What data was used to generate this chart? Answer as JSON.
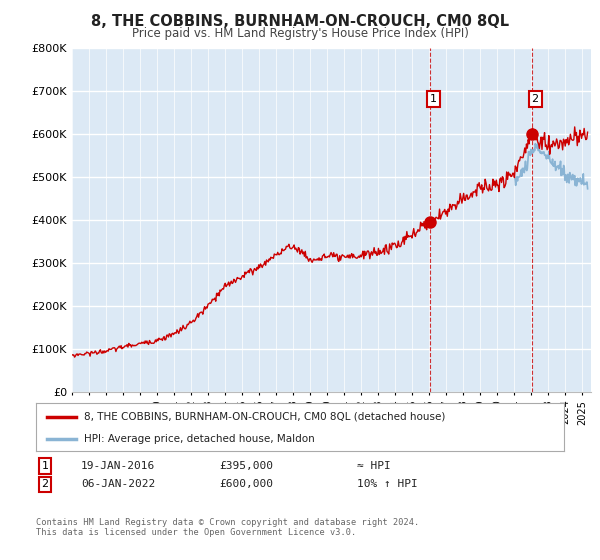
{
  "title": "8, THE COBBINS, BURNHAM-ON-CROUCH, CM0 8QL",
  "subtitle": "Price paid vs. HM Land Registry's House Price Index (HPI)",
  "legend_label_red": "8, THE COBBINS, BURNHAM-ON-CROUCH, CM0 8QL (detached house)",
  "legend_label_blue": "HPI: Average price, detached house, Maldon",
  "annotation1_date": "19-JAN-2016",
  "annotation1_price": "£395,000",
  "annotation1_hpi": "≈ HPI",
  "annotation2_date": "06-JAN-2022",
  "annotation2_price": "£600,000",
  "annotation2_hpi": "10% ↑ HPI",
  "footer": "Contains HM Land Registry data © Crown copyright and database right 2024.\nThis data is licensed under the Open Government Licence v3.0.",
  "ylim": [
    0,
    800000
  ],
  "yticks": [
    0,
    100000,
    200000,
    300000,
    400000,
    500000,
    600000,
    700000,
    800000
  ],
  "fig_bg_color": "#ffffff",
  "plot_bg_color": "#dce9f5",
  "grid_color": "#ffffff",
  "red_color": "#cc0000",
  "blue_color": "#8ab4d4",
  "marker1_x": 2016.05,
  "marker1_y": 395000,
  "marker2_x": 2022.02,
  "marker2_y": 600000,
  "vline1_x": 2016.05,
  "vline2_x": 2022.02,
  "xmin": 1995,
  "xmax": 2025.5
}
